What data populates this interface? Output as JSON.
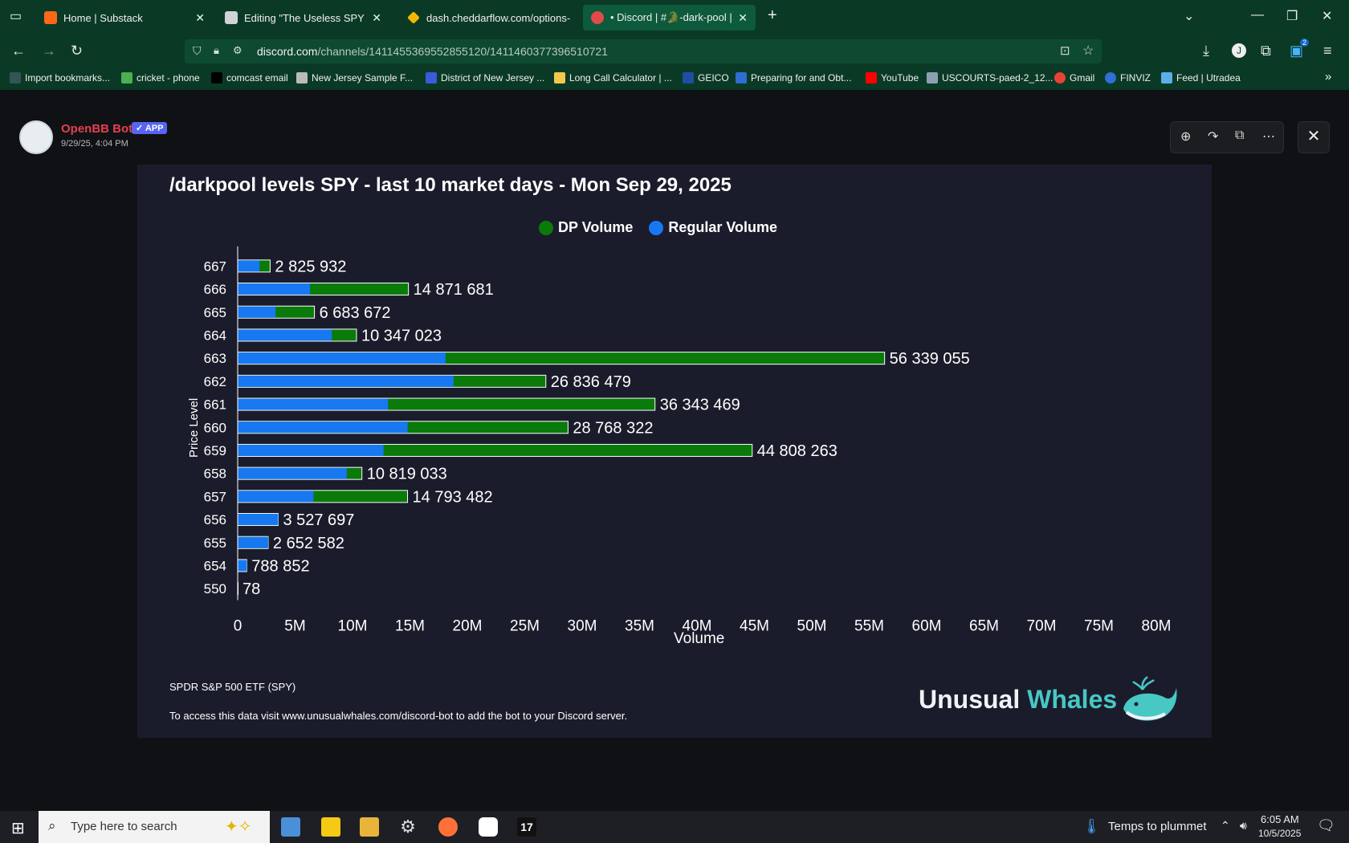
{
  "browser": {
    "tabs": [
      {
        "label": "Home | Substack",
        "color": "#ff6719"
      },
      {
        "label": "Editing \"The Useless SPY Report\"",
        "color": "#ffffff"
      },
      {
        "label": "dash.cheddarflow.com/options-",
        "color": "#f2b900"
      },
      {
        "label": "• Discord | #🐊-dark-pool | The",
        "color": "#e34a4a"
      }
    ],
    "url_host": "discord.com",
    "url_path": "/channels/1411455369552855120/1411460377396510721",
    "bookmarks": [
      "Import bookmarks...",
      "cricket - phone",
      "comcast email",
      "New Jersey Sample F...",
      "District of New Jersey ...",
      "Long Call Calculator | ...",
      "GEICO",
      "Preparing for and Obt...",
      "YouTube",
      "USCOURTS-paed-2_12...",
      "Gmail",
      "FINVIZ",
      "Feed | Utradea"
    ],
    "notif_count": "2"
  },
  "message": {
    "author": "OpenBB Bot",
    "badge": "✓ APP",
    "timestamp": "9/29/25, 4:04 PM"
  },
  "card": {
    "footer_ticker": "SPDR S&P 500 ETF (SPY)",
    "footer_note": "To access this data visit www.unusualwhales.com/discord-bot to add the bot to your Discord server.",
    "brand_1": "Unusual",
    "brand_2": "Whales"
  },
  "chart_data": {
    "type": "bar",
    "orientation": "horizontal",
    "stacked": true,
    "title": "/darkpool levels SPY - last 10 market days - Mon Sep 29, 2025",
    "xlabel": "Volume",
    "ylabel": "Price Level",
    "xlim": [
      0,
      80000000
    ],
    "x_ticks": [
      "0",
      "5M",
      "10M",
      "15M",
      "20M",
      "25M",
      "30M",
      "35M",
      "40M",
      "45M",
      "50M",
      "55M",
      "60M",
      "65M",
      "70M",
      "75M",
      "80M"
    ],
    "legend_position": "top-center",
    "categories": [
      "667",
      "666",
      "665",
      "664",
      "663",
      "662",
      "661",
      "660",
      "659",
      "658",
      "657",
      "656",
      "655",
      "654",
      "550"
    ],
    "series": [
      {
        "name": "Regular Volume",
        "color": "#1778f2",
        "values": [
          1900000,
          6300000,
          3300000,
          8200000,
          18100000,
          18800000,
          13100000,
          14800000,
          12700000,
          9500000,
          6600000,
          3700000,
          2700000,
          800000,
          0
        ]
      },
      {
        "name": "DP Volume",
        "color": "#0a7a0a",
        "values": [
          2825932,
          14871681,
          6683672,
          10347023,
          56339055,
          26836479,
          36343469,
          28768322,
          44808263,
          10819033,
          14793482,
          3527697,
          2652582,
          788852,
          78
        ]
      }
    ],
    "data_labels": [
      "2 825 932",
      "14 871 681",
      "6 683 672",
      "10 347 023",
      "56 339 055",
      "26 836 479",
      "36 343 469",
      "28 768 322",
      "44 808 263",
      "10 819 033",
      "14 793 482",
      "3 527 697",
      "2 652 582",
      "788 852",
      "78"
    ]
  },
  "taskbar": {
    "search_placeholder": "Type here to search",
    "weather": "Temps to plummet",
    "time": "6:05 AM",
    "date": "10/5/2025"
  }
}
